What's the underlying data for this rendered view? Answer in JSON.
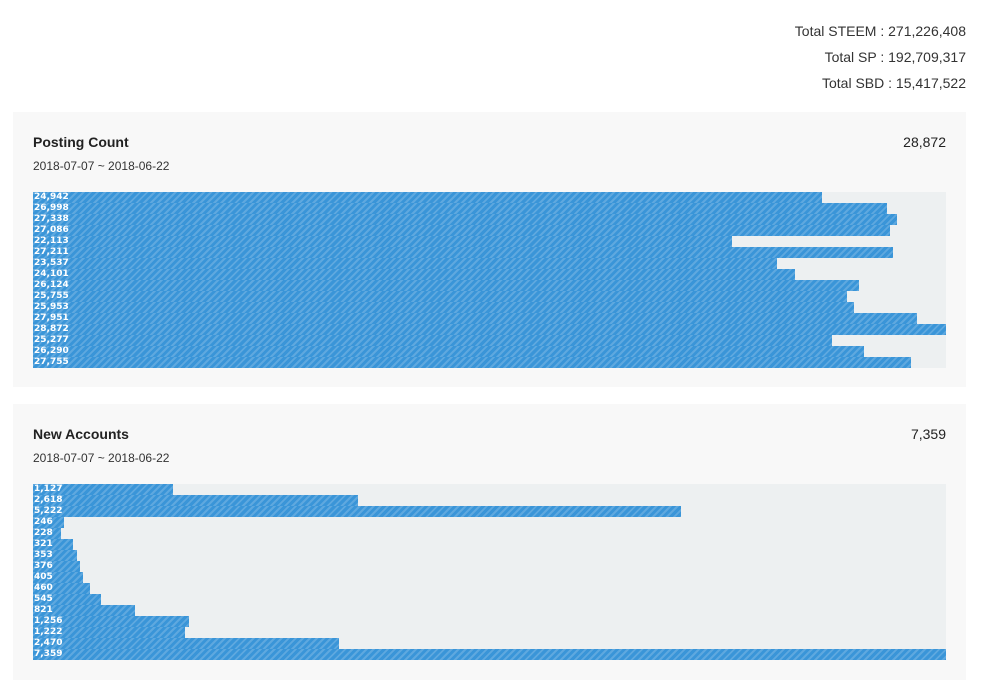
{
  "totals": {
    "steem": "Total STEEM : 271,226,408",
    "sp": "Total SP : 192,709,317",
    "sbd": "Total SBD : 15,417,522"
  },
  "panels": {
    "posting": {
      "title": "Posting Count",
      "range": "2018-07-07 ~ 2018-06-22",
      "value": "28,872"
    },
    "accounts": {
      "title": "New Accounts",
      "range": "2018-07-07 ~ 2018-06-22",
      "value": "7,359"
    }
  },
  "colors": {
    "bar": "#3a95d8",
    "track": "#edf0f1",
    "panel": "#f8f8f8"
  },
  "chart_data": [
    {
      "type": "bar",
      "orientation": "horizontal",
      "title": "Posting Count",
      "values": [
        24942,
        26998,
        27338,
        27086,
        22113,
        27211,
        23537,
        24101,
        26124,
        25755,
        25953,
        27951,
        28872,
        25277,
        26290,
        27755
      ],
      "labels": [
        "24,942",
        "26,998",
        "27,338",
        "27,086",
        "22,113",
        "27,211",
        "23,537",
        "24,101",
        "26,124",
        "25,755",
        "25,953",
        "27,951",
        "28,872",
        "25,277",
        "26,290",
        "27,755"
      ],
      "xlim": [
        0,
        28872
      ]
    },
    {
      "type": "bar",
      "orientation": "horizontal",
      "title": "New Accounts",
      "values": [
        1127,
        2618,
        5222,
        246,
        228,
        321,
        353,
        376,
        405,
        460,
        545,
        821,
        1256,
        1222,
        2470,
        7359
      ],
      "labels": [
        "1,127",
        "2,618",
        "5,222",
        "246",
        "228",
        "321",
        "353",
        "376",
        "405",
        "460",
        "545",
        "821",
        "1,256",
        "1,222",
        "2,470",
        "7,359"
      ],
      "xlim": [
        0,
        7359
      ]
    }
  ]
}
